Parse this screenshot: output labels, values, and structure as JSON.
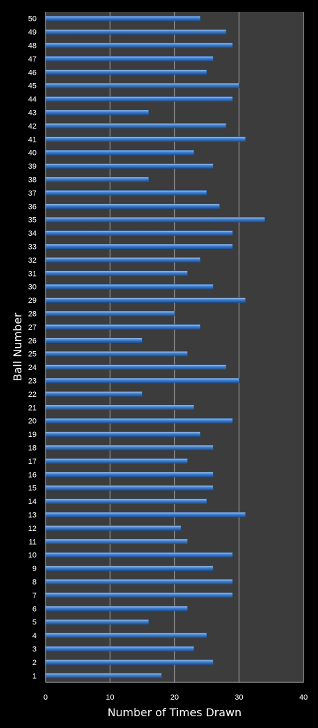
{
  "colors": {
    "background": "#000000",
    "plot_area": "#3c3c3c",
    "gridline": "#bdbdbd",
    "bar_top": "#9cc3ee",
    "bar_main": "#3f7fcf",
    "bar_bottom": "#1e4f8f",
    "text": "#ffffff"
  },
  "chart_data": {
    "type": "bar",
    "orientation": "horizontal",
    "title": "",
    "xlabel": "Number of Times Drawn",
    "ylabel": "Ball Number",
    "xlim": [
      0,
      40
    ],
    "xticks": [
      "0",
      "10",
      "20",
      "30",
      "40"
    ],
    "grid": true,
    "legend": "none",
    "categories": [
      "1",
      "2",
      "3",
      "4",
      "5",
      "6",
      "7",
      "8",
      "9",
      "10",
      "11",
      "12",
      "13",
      "14",
      "15",
      "16",
      "17",
      "18",
      "19",
      "20",
      "21",
      "22",
      "23",
      "24",
      "25",
      "26",
      "27",
      "28",
      "29",
      "30",
      "31",
      "32",
      "33",
      "34",
      "35",
      "36",
      "37",
      "38",
      "39",
      "40",
      "41",
      "42",
      "43",
      "44",
      "45",
      "46",
      "47",
      "48",
      "49",
      "50"
    ],
    "values": [
      18,
      26,
      23,
      25,
      16,
      22,
      29,
      29,
      26,
      29,
      22,
      21,
      31,
      25,
      26,
      26,
      22,
      26,
      24,
      29,
      23,
      15,
      30,
      28,
      22,
      15,
      24,
      20,
      31,
      26,
      22,
      24,
      29,
      29,
      34,
      27,
      25,
      16,
      26,
      23,
      31,
      28,
      16,
      29,
      30,
      25,
      26,
      29,
      28,
      24
    ]
  }
}
